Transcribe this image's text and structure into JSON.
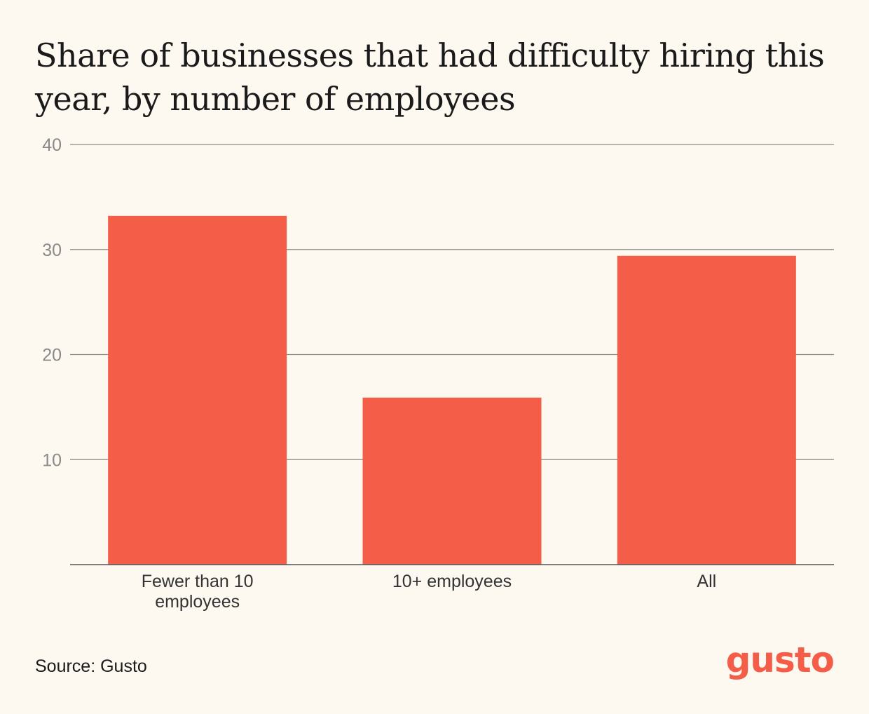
{
  "title": "Share of businesses that had difficulty hiring this year, by number of employees",
  "source": "Source: Gusto",
  "logo_text": "gusto",
  "colors": {
    "bar": "#f45d48",
    "background": "#fdf8f0",
    "grid": "#8a8a8a",
    "tick": "#8a8a8a",
    "text": "#1a1a1a"
  },
  "chart_data": {
    "type": "bar",
    "title": "Share of businesses that had difficulty hiring this year, by number of employees",
    "categories": [
      [
        "Fewer than 10",
        "employees"
      ],
      [
        "10+ employees"
      ],
      [
        "All"
      ]
    ],
    "values": [
      33.2,
      15.9,
      29.4
    ],
    "ylim": [
      0,
      40
    ],
    "yticks": [
      10,
      20,
      30,
      40
    ],
    "grid": true,
    "xlabel": "",
    "ylabel": ""
  }
}
